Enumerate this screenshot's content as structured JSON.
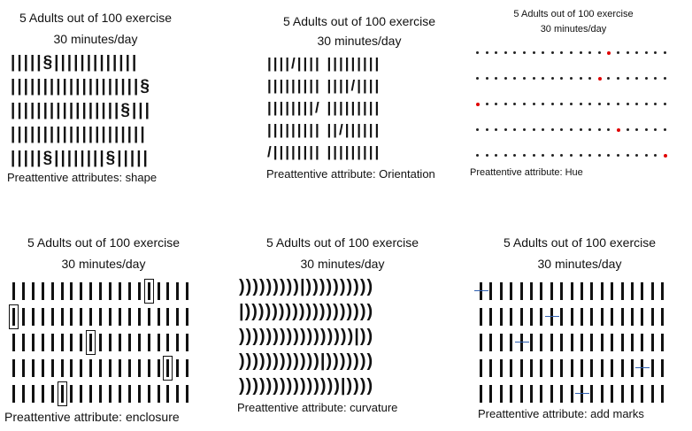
{
  "panels": [
    {
      "id": "shape",
      "title_line1": "5 Adults out of 100 exercise",
      "title_line2": "30 minutes/day",
      "caption": "Preattentive attributes: shape",
      "rows": [
        "|||||§|||||||||||||",
        "||||||||||||||||||||§",
        "|||||||||||||||||§|||",
        "|||||||||||||||||||||",
        "|||||§||||||||§|||||"
      ]
    },
    {
      "id": "orientation",
      "title_line1": "5 Adults out of 100 exercise",
      "title_line2": "30 minutes/day",
      "caption": "Preattentive attribute: Orientation",
      "rows": [
        "||||/|||| |||||||||",
        "||||||||| ||||/||||",
        "||||||||/ |||||||||",
        "||||||||| ||/||||||",
        "/|||||||| |||||||||"
      ]
    },
    {
      "id": "hue",
      "title_line1": "5 Adults out of 100 exercise",
      "title_line2": "30 minutes/day",
      "caption": "Preattentive attribute: Hue",
      "accent": "#e00000",
      "red_positions": [
        [
          0,
          14
        ],
        [
          1,
          13
        ],
        [
          2,
          0
        ],
        [
          3,
          15
        ],
        [
          4,
          20
        ]
      ]
    },
    {
      "id": "enclosure",
      "title_line1": "5 Adults out of 100 exercise",
      "title_line2": "30 minutes/day",
      "caption": "Preattentive attribute: enclosure",
      "boxed_positions": [
        [
          0,
          14
        ],
        [
          1,
          0
        ],
        [
          2,
          8
        ],
        [
          3,
          16
        ],
        [
          4,
          5
        ]
      ]
    },
    {
      "id": "curvature",
      "title_line1": "5 Adults out of 100 exercise",
      "title_line2": "30 minutes/day",
      "caption": "Preattentive attribute: curvature",
      "rows": [
        ")))))))))|))))))))))",
        "|)))))))))))))))))))",
        ")))))))))))))))))|))",
        "))))))))))))|)))))))",
        ")))))))))))))))|))))"
      ]
    },
    {
      "id": "marks",
      "title_line1": "5 Adults out of 100 exercise",
      "title_line2": "30 minutes/day",
      "caption": "Preattentive attribute: add marks",
      "accent": "#2e5fb0",
      "mark_positions": [
        [
          0,
          0
        ],
        [
          1,
          7
        ],
        [
          2,
          4
        ],
        [
          3,
          16
        ],
        [
          4,
          10
        ]
      ]
    }
  ]
}
